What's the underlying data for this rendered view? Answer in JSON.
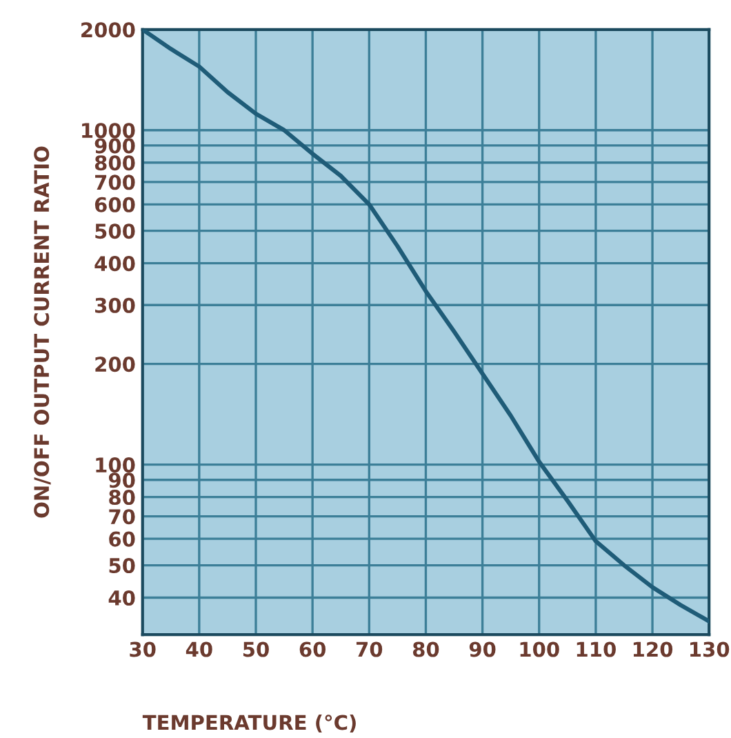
{
  "chart_data": {
    "type": "line",
    "xlabel": "TEMPERATURE (°C)",
    "ylabel": "ON/OFF OUTPUT CURRENT RATIO",
    "x": [
      30,
      35,
      40,
      45,
      50,
      55,
      60,
      65,
      70,
      75,
      80,
      85,
      90,
      95,
      100,
      105,
      110,
      115,
      120,
      125,
      130
    ],
    "series": [
      {
        "color": "#1f5c78",
        "values": [
          2000,
          1750,
          1550,
          1300,
          1120,
          1000,
          850,
          730,
          600,
          450,
          330,
          250,
          187,
          140,
          102,
          78,
          59,
          50,
          43,
          38,
          34
        ]
      }
    ],
    "xlim": [
      30,
      130
    ],
    "xticks": [
      30,
      40,
      50,
      60,
      70,
      80,
      90,
      100,
      110,
      120,
      130
    ],
    "ylim": [
      31,
      2000
    ],
    "yticks": [
      40,
      50,
      60,
      70,
      80,
      90,
      100,
      200,
      300,
      400,
      500,
      600,
      700,
      800,
      900,
      1000,
      2000
    ],
    "log": "y",
    "grid": true,
    "marker": "none",
    "line_style": "solid"
  }
}
